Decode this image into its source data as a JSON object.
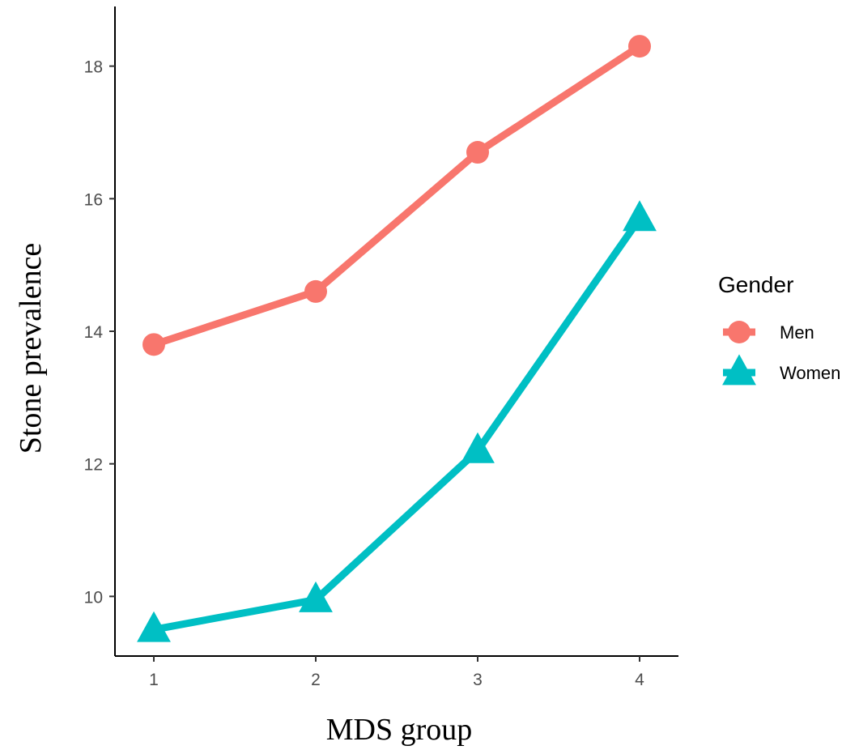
{
  "chart_data": {
    "type": "line",
    "xlabel": "MDS group",
    "ylabel": "Stone prevalence",
    "categories": [
      "1",
      "2",
      "3",
      "4"
    ],
    "yticks": [
      "10",
      "12",
      "14",
      "16",
      "18"
    ],
    "ylim": [
      9.1,
      18.9
    ],
    "grid": false,
    "legend": {
      "title": "Gender",
      "position": "right"
    },
    "series": [
      {
        "name": "Men",
        "marker": "circle",
        "color": "#F8766D",
        "values": [
          13.8,
          14.6,
          16.7,
          18.3
        ]
      },
      {
        "name": "Women",
        "marker": "triangle",
        "color": "#00BFC4",
        "values": [
          9.5,
          9.95,
          12.2,
          15.7
        ]
      }
    ]
  }
}
